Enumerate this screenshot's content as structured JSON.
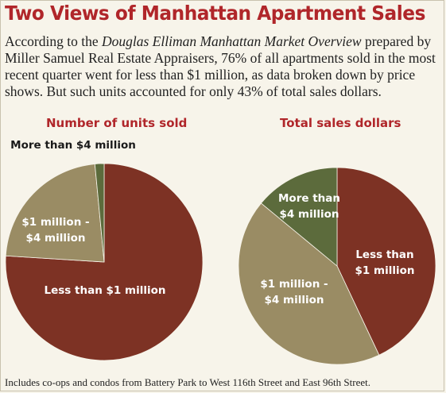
{
  "title": "Two Views of Manhattan Apartment Sales",
  "intro": {
    "before": "According to the ",
    "source": "Douglas Elliman Manhattan Market Overview",
    "after": " prepared by Miller Samuel Real Estate Appraisers, 76% of all apartments sold in the most recent quarter went for less than $1 million, as data broken down by price shows. But such units accounted for only 43% of total sales dollars."
  },
  "footnote": "Includes co-ops and condos from Battery Park to West 116th Street and East 96th Street.",
  "colors": {
    "less_than_1m": "#7d3224",
    "one_to_four_m": "#9a8c64",
    "more_than_4m": "#5c6b3c",
    "title": "#b0262a"
  },
  "chart_data": [
    {
      "type": "pie",
      "title": "Number of units sold",
      "slices": [
        {
          "label": "Less than $1 million",
          "value": 76
        },
        {
          "label": "$1 million - $4 million",
          "value": 22.5
        },
        {
          "label": "More than $4 million",
          "value": 1.5
        }
      ],
      "label_lines": [
        [
          "Less than $1 million"
        ],
        [
          "$1 million -",
          "$4 million"
        ],
        [
          "More than $4 million"
        ]
      ]
    },
    {
      "type": "pie",
      "title": "Total sales dollars",
      "slices": [
        {
          "label": "Less than $1 million",
          "value": 43
        },
        {
          "label": "$1 million - $4 million",
          "value": 43
        },
        {
          "label": "More than $4 million",
          "value": 14
        }
      ],
      "label_lines": [
        [
          "Less than",
          "$1 million"
        ],
        [
          "$1 million -",
          "$4 million"
        ],
        [
          "More than",
          "$4 million"
        ]
      ]
    }
  ]
}
